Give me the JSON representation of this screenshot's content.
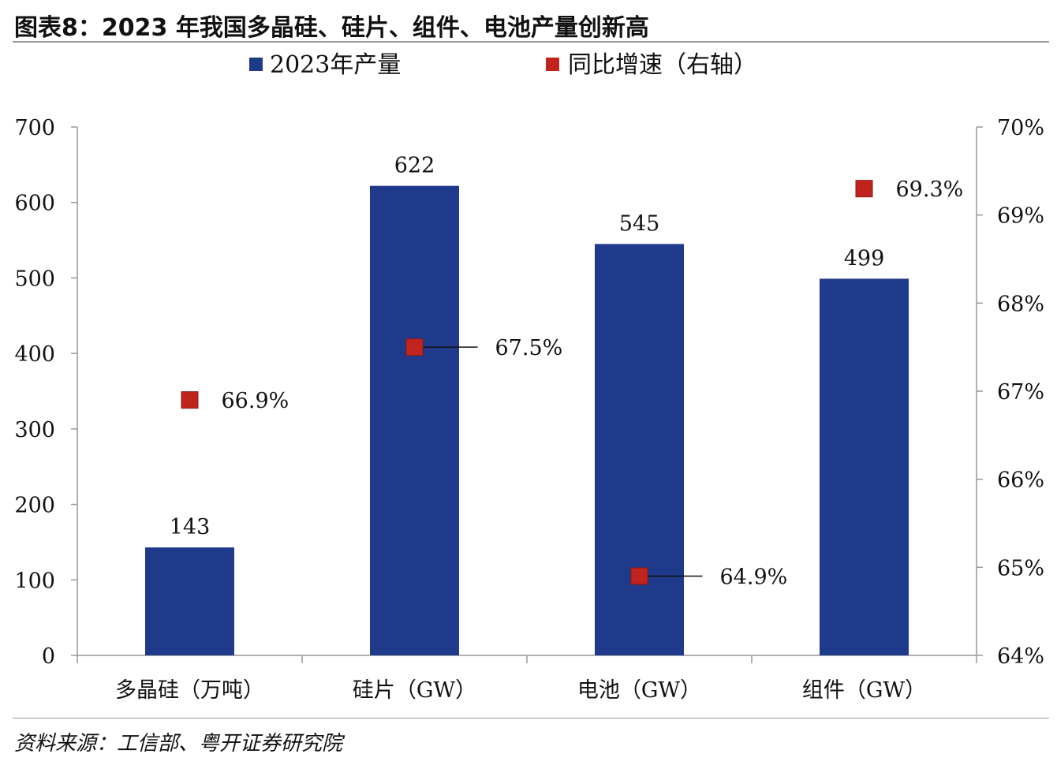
{
  "title": "图表8：2023 年我国多晶硅、硅片、组件、电池产量创新高",
  "source": "资料来源：工信部、粤开证券研究院",
  "colors": {
    "bar": "#1f3a8a",
    "marker": "#c0241c",
    "axis": "#999999"
  },
  "chart_data": {
    "type": "bar",
    "categories": [
      "多晶硅（万吨）",
      "硅片（GW）",
      "电池（GW）",
      "组件（GW）"
    ],
    "series": [
      {
        "name": "2023年产量",
        "kind": "bar",
        "axis": "left",
        "values": [
          143,
          622,
          545,
          499
        ],
        "labels": [
          "143",
          "622",
          "545",
          "499"
        ]
      },
      {
        "name": "同比增速（右轴）",
        "kind": "scatter",
        "axis": "right",
        "values": [
          66.9,
          67.5,
          64.9,
          69.3
        ],
        "labels": [
          "66.9%",
          "67.5%",
          "64.9%",
          "69.3%"
        ]
      }
    ],
    "left_axis": {
      "ylim": [
        0,
        700
      ],
      "ticks": [
        "0",
        "100",
        "200",
        "300",
        "400",
        "500",
        "600",
        "700"
      ]
    },
    "right_axis": {
      "ylim": [
        64,
        70
      ],
      "ticks": [
        "64%",
        "65%",
        "66%",
        "67%",
        "68%",
        "69%",
        "70%"
      ]
    },
    "legend": {
      "position": "top",
      "entries": [
        "2023年产量",
        "同比增速（右轴）"
      ]
    },
    "grid": false
  }
}
